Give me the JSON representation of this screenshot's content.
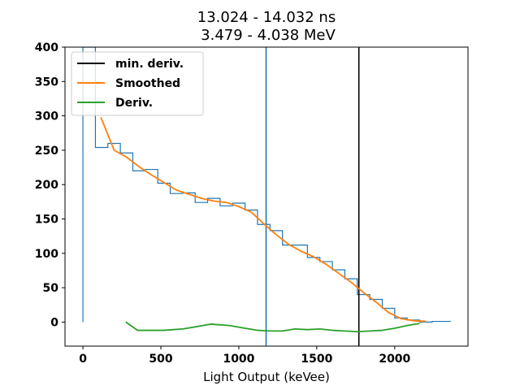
{
  "chart_data": {
    "type": "line",
    "title_line1": "13.024 - 14.032 ns",
    "title_line2": "3.479 - 4.038 MeV",
    "xlabel": "Light Output (keVee)",
    "ylabel": "",
    "xlim": [
      -115,
      2470
    ],
    "ylim": [
      -35,
      400
    ],
    "xticks": [
      0,
      500,
      1000,
      1500,
      2000
    ],
    "yticks": [
      0,
      50,
      100,
      150,
      200,
      250,
      300,
      350,
      400
    ],
    "grid": false,
    "legend_position": "top-left",
    "legend": [
      {
        "label": "min. deriv.",
        "color": "#000000"
      },
      {
        "label": "Smoothed",
        "color": "#ff7f0e"
      },
      {
        "label": "Deriv.",
        "color": "#2ca02c"
      }
    ],
    "histogram": {
      "name": "",
      "color": "#1f77b4",
      "edges": [
        0,
        80,
        160,
        240,
        320,
        400,
        480,
        560,
        640,
        720,
        800,
        880,
        960,
        1040,
        1120,
        1200,
        1280,
        1360,
        1440,
        1520,
        1600,
        1680,
        1760,
        1840,
        1920,
        2000,
        2080,
        2160,
        2240,
        2320,
        2360
      ],
      "counts": [
        400,
        254,
        260,
        246,
        220,
        222,
        202,
        187,
        188,
        174,
        180,
        169,
        173,
        163,
        142,
        133,
        112,
        112,
        94,
        88,
        76,
        63,
        40,
        33,
        20,
        6,
        3,
        0,
        1,
        1
      ]
    },
    "vline_blue": {
      "x": 1175,
      "color": "#1f77b4"
    },
    "vline_black": {
      "x": 1770,
      "color": "#000000",
      "name": "min. deriv."
    },
    "series": [
      {
        "name": "Smoothed",
        "color": "#ff7f0e",
        "x": [
          115,
          200,
          280,
          360,
          440,
          520,
          600,
          680,
          760,
          840,
          920,
          1000,
          1080,
          1160,
          1240,
          1320,
          1400,
          1480,
          1560,
          1640,
          1720,
          1800,
          1880,
          1960,
          2040,
          2120,
          2200
        ],
        "y": [
          298,
          250,
          240,
          226,
          214,
          203,
          192,
          186,
          180,
          176,
          174,
          168,
          160,
          143,
          127,
          113,
          103,
          95,
          84,
          71,
          58,
          43,
          29,
          14,
          5,
          2,
          1
        ]
      },
      {
        "name": "Deriv.",
        "color": "#2ca02c",
        "x": [
          275,
          350,
          440,
          520,
          580,
          640,
          720,
          820,
          940,
          1040,
          1120,
          1200,
          1280,
          1360,
          1440,
          1520,
          1600,
          1680,
          1760,
          1840,
          1920,
          2000,
          2080,
          2160
        ],
        "y": [
          0,
          -12,
          -12,
          -12,
          -11,
          -10,
          -7,
          -3,
          -5,
          -9,
          -12,
          -13,
          -13,
          -10,
          -11,
          -10,
          -12,
          -13,
          -14,
          -13,
          -12,
          -9,
          -5,
          -2
        ]
      }
    ]
  }
}
